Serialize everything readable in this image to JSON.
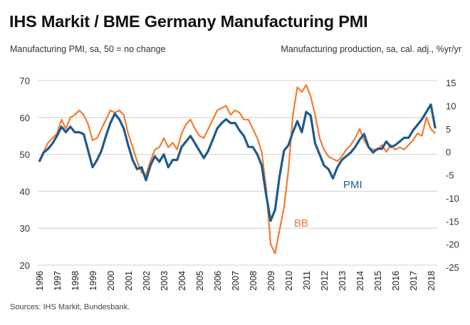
{
  "header": {
    "title": "IHS Markit / BME Germany Manufacturing PMI",
    "subtitle_left": "Manufacturing PMI, sa, 50 = no change",
    "subtitle_right": "Manufacturing production, sa, cal. adj., %yr/yr"
  },
  "footer": {
    "source": "Sources: IHS Markit, Bundesbank."
  },
  "chart_data": {
    "type": "line",
    "title": "IHS Markit / BME Germany Manufacturing PMI",
    "ylabel_left": "Manufacturing PMI, sa, 50 = no change",
    "ylabel_right": "Manufacturing production, sa, cal. adj., %yr/yr",
    "ylim_left": [
      20,
      70
    ],
    "yticks_left": [
      20,
      30,
      40,
      50,
      60,
      70
    ],
    "ylim_right": [
      -25,
      15
    ],
    "yticks_right": [
      -25,
      -20,
      -15,
      -10,
      -5,
      0,
      5,
      10,
      15
    ],
    "xlim": [
      1996,
      2018.4
    ],
    "xticks": [
      "1996",
      "1997",
      "1998",
      "1999",
      "2000",
      "2001",
      "2002",
      "2003",
      "2004",
      "2005",
      "2006",
      "2007",
      "2008",
      "2009",
      "2010",
      "2011",
      "2012",
      "2013",
      "2014",
      "2015",
      "2016",
      "2017",
      "2018"
    ],
    "grid": "horizontal",
    "colors": {
      "PMI": "#1f5a8c",
      "BB": "#f47a30"
    },
    "series": [
      {
        "name": "PMI",
        "axis": "left",
        "label": "PMI",
        "x": [
          1996.0,
          1996.25,
          1996.5,
          1996.75,
          1997.0,
          1997.25,
          1997.5,
          1997.75,
          1998.0,
          1998.25,
          1998.5,
          1998.75,
          1999.0,
          1999.25,
          1999.5,
          1999.75,
          2000.0,
          2000.25,
          2000.5,
          2000.75,
          2001.0,
          2001.25,
          2001.5,
          2001.75,
          2002.0,
          2002.25,
          2002.5,
          2002.75,
          2003.0,
          2003.25,
          2003.5,
          2003.75,
          2004.0,
          2004.25,
          2004.5,
          2004.75,
          2005.0,
          2005.25,
          2005.5,
          2005.75,
          2006.0,
          2006.25,
          2006.5,
          2006.75,
          2007.0,
          2007.25,
          2007.5,
          2007.75,
          2008.0,
          2008.25,
          2008.5,
          2008.75,
          2009.0,
          2009.25,
          2009.5,
          2009.75,
          2010.0,
          2010.25,
          2010.5,
          2010.75,
          2011.0,
          2011.25,
          2011.5,
          2011.75,
          2012.0,
          2012.25,
          2012.5,
          2012.75,
          2013.0,
          2013.25,
          2013.5,
          2013.75,
          2014.0,
          2014.25,
          2014.5,
          2014.75,
          2015.0,
          2015.25,
          2015.5,
          2015.75,
          2016.0,
          2016.25,
          2016.5,
          2016.75,
          2017.0,
          2017.25,
          2017.5,
          2017.75,
          2018.0,
          2018.25
        ],
        "values": [
          48.0,
          50.5,
          51.5,
          53.0,
          55.0,
          57.5,
          56.0,
          57.5,
          56.0,
          56.0,
          55.5,
          51.0,
          46.5,
          48.5,
          51.0,
          55.0,
          58.5,
          61.0,
          59.5,
          57.0,
          52.5,
          48.5,
          46.0,
          46.5,
          43.0,
          47.0,
          49.5,
          48.0,
          50.0,
          46.5,
          48.5,
          48.5,
          52.0,
          53.5,
          55.0,
          53.0,
          51.0,
          49.0,
          51.0,
          54.0,
          57.0,
          58.5,
          59.5,
          58.5,
          58.5,
          56.5,
          55.0,
          52.0,
          52.0,
          50.0,
          47.0,
          39.0,
          32.0,
          35.0,
          44.0,
          51.0,
          52.5,
          56.0,
          59.0,
          56.0,
          61.5,
          60.5,
          53.0,
          50.0,
          47.0,
          46.0,
          43.5,
          46.5,
          48.5,
          49.5,
          50.5,
          52.0,
          54.0,
          55.5,
          52.0,
          50.5,
          51.5,
          51.5,
          53.5,
          52.0,
          52.5,
          53.5,
          54.5,
          54.5,
          56.5,
          58.0,
          59.5,
          61.5,
          63.5,
          57.0
        ]
      },
      {
        "name": "BB",
        "axis": "right",
        "label": "BB",
        "x": [
          1996.0,
          1996.25,
          1996.5,
          1996.75,
          1997.0,
          1997.25,
          1997.5,
          1997.75,
          1998.0,
          1998.25,
          1998.5,
          1998.75,
          1999.0,
          1999.25,
          1999.5,
          1999.75,
          2000.0,
          2000.25,
          2000.5,
          2000.75,
          2001.0,
          2001.25,
          2001.5,
          2001.75,
          2002.0,
          2002.25,
          2002.5,
          2002.75,
          2003.0,
          2003.25,
          2003.5,
          2003.75,
          2004.0,
          2004.25,
          2004.5,
          2004.75,
          2005.0,
          2005.25,
          2005.5,
          2005.75,
          2006.0,
          2006.25,
          2006.5,
          2006.75,
          2007.0,
          2007.25,
          2007.5,
          2007.75,
          2008.0,
          2008.25,
          2008.5,
          2008.75,
          2009.0,
          2009.25,
          2009.5,
          2009.75,
          2010.0,
          2010.25,
          2010.5,
          2010.75,
          2011.0,
          2011.25,
          2011.5,
          2011.75,
          2012.0,
          2012.25,
          2012.5,
          2012.75,
          2013.0,
          2013.25,
          2013.5,
          2013.75,
          2014.0,
          2014.25,
          2014.5,
          2014.75,
          2015.0,
          2015.25,
          2015.5,
          2015.75,
          2016.0,
          2016.25,
          2016.5,
          2016.75,
          2017.0,
          2017.25,
          2017.5,
          2017.75,
          2018.0,
          2018.25
        ],
        "values": [
          -2.0,
          0.0,
          2.0,
          3.0,
          4.0,
          7.0,
          5.0,
          7.5,
          8.0,
          9.0,
          8.0,
          6.0,
          2.5,
          3.0,
          5.0,
          7.0,
          9.0,
          8.5,
          9.0,
          8.0,
          4.0,
          1.0,
          -2.0,
          -4.5,
          -5.0,
          -2.0,
          0.5,
          1.0,
          3.0,
          1.0,
          2.0,
          0.5,
          4.0,
          6.0,
          7.0,
          5.0,
          3.5,
          3.0,
          5.0,
          7.0,
          9.0,
          9.5,
          10.0,
          8.0,
          9.0,
          8.5,
          7.0,
          7.0,
          5.0,
          3.0,
          0.0,
          -8.0,
          -20.0,
          -22.0,
          -17.0,
          -12.0,
          -4.0,
          8.0,
          14.0,
          13.0,
          14.5,
          12.0,
          8.0,
          3.0,
          0.5,
          -1.0,
          -1.5,
          -2.0,
          -1.0,
          0.5,
          1.5,
          3.0,
          5.0,
          2.5,
          1.0,
          0.5,
          0.5,
          1.5,
          0.0,
          1.5,
          0.5,
          1.0,
          0.5,
          1.5,
          2.5,
          4.0,
          3.5,
          7.5,
          5.0,
          4.0
        ]
      }
    ],
    "annotations": [
      {
        "text": "PMI",
        "series": "PMI"
      },
      {
        "text": "BB",
        "series": "BB"
      }
    ]
  }
}
